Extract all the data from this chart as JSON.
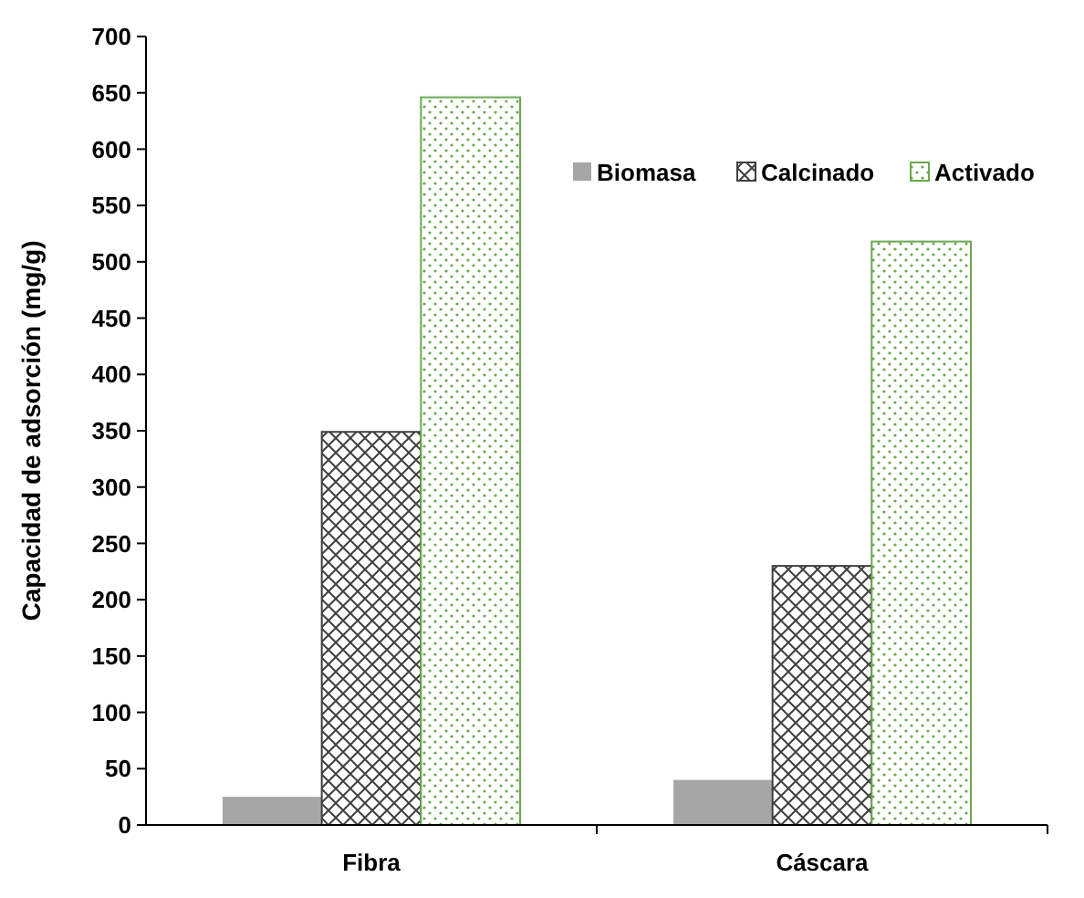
{
  "chart_data": {
    "type": "bar",
    "ylabel": "Capacidad de adsorción (mg/g)",
    "categories": [
      "Fibra",
      "Cáscara"
    ],
    "series": [
      {
        "name": "Biomasa",
        "color": "#a6a6a6",
        "values": [
          25,
          40
        ]
      },
      {
        "name": "Calcinado",
        "color": "#404040",
        "values": [
          349,
          230
        ]
      },
      {
        "name": "Activado",
        "color": "#6aa84f",
        "values": [
          646,
          518
        ]
      }
    ],
    "ylim": [
      0,
      700
    ],
    "yticks": [
      0,
      50,
      100,
      150,
      200,
      250,
      300,
      350,
      400,
      450,
      500,
      550,
      600,
      650,
      700
    ],
    "grid": false,
    "legend": "top right"
  }
}
